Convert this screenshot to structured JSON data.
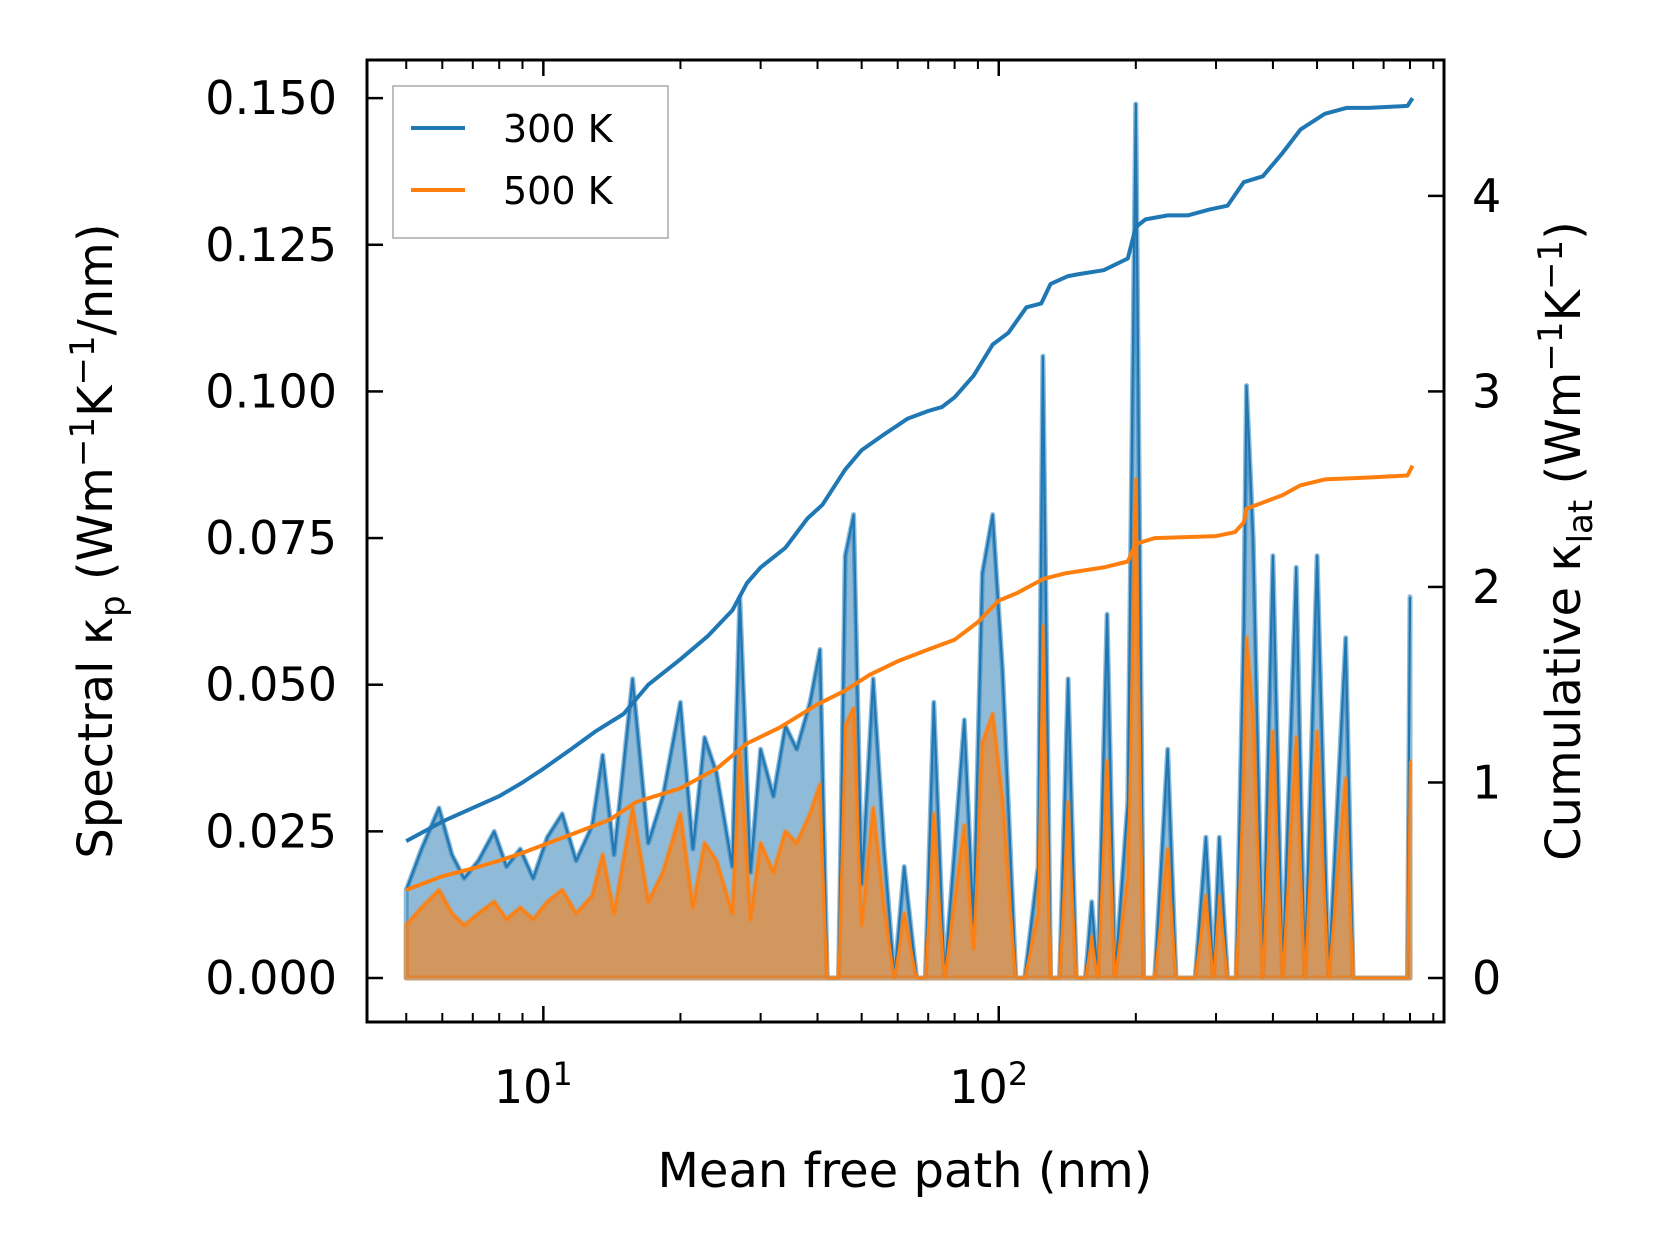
{
  "chart_data": {
    "type": "line",
    "xlabel": "Mean free path (nm)",
    "x_scale": "log",
    "xlim": [
      4.1,
      950
    ],
    "x_ticks": [
      {
        "value": 10,
        "base": "10",
        "exp": "1"
      },
      {
        "value": 100,
        "base": "10",
        "exp": "2"
      }
    ],
    "ylabel_left": {
      "prefix": "Spectral κ",
      "sub": "p",
      "units": " (Wm",
      "e1": "−1",
      "mid": "K",
      "e2": "−1",
      "tail": "/nm)"
    },
    "ylim_left": [
      -0.0075,
      0.1565
    ],
    "yticks_left": [
      "0.000",
      "0.025",
      "0.050",
      "0.075",
      "0.100",
      "0.125",
      "0.150"
    ],
    "ylabel_right": {
      "prefix": "Cumulative κ",
      "sub": "lat",
      "units": " (Wm",
      "e1": "−1",
      "mid": "K",
      "e2": "−1",
      "tail": ")"
    },
    "ylim_right": [
      -0.225,
      4.695
    ],
    "yticks_right": [
      "0",
      "1",
      "2",
      "3",
      "4"
    ],
    "legend": {
      "location": "upper-left",
      "entries": [
        "300 K",
        "500 K"
      ]
    },
    "colors": {
      "300 K": "#1f77b4",
      "500 K": "#ff7f0e",
      "fill_300": "#1f77b4",
      "fill_500": "#ff7f0e"
    },
    "spectral_series": [
      {
        "name": "300 K",
        "axis": "left",
        "points": [
          [
            5,
            0.015
          ],
          [
            5.4,
            0.022
          ],
          [
            5.9,
            0.029
          ],
          [
            6.3,
            0.021
          ],
          [
            6.7,
            0.017
          ],
          [
            7.2,
            0.02
          ],
          [
            7.8,
            0.025
          ],
          [
            8.3,
            0.019
          ],
          [
            8.9,
            0.022
          ],
          [
            9.5,
            0.017
          ],
          [
            10.2,
            0.024
          ],
          [
            11,
            0.028
          ],
          [
            11.8,
            0.02
          ],
          [
            12.8,
            0.026
          ],
          [
            13.5,
            0.038
          ],
          [
            14.3,
            0.021
          ],
          [
            15.7,
            0.051
          ],
          [
            17,
            0.023
          ],
          [
            18.3,
            0.031
          ],
          [
            20,
            0.047
          ],
          [
            21.3,
            0.022
          ],
          [
            22.6,
            0.041
          ],
          [
            24,
            0.035
          ],
          [
            26,
            0.019
          ],
          [
            27,
            0.065
          ],
          [
            28.5,
            0.018
          ],
          [
            30,
            0.039
          ],
          [
            32,
            0.031
          ],
          [
            34,
            0.043
          ],
          [
            36,
            0.039
          ],
          [
            38.5,
            0.047
          ],
          [
            40.5,
            0.056
          ],
          [
            42,
            0.0
          ],
          [
            44.5,
            0.0
          ],
          [
            46,
            0.072
          ],
          [
            48,
            0.079
          ],
          [
            50,
            0.016
          ],
          [
            53,
            0.051
          ],
          [
            56,
            0.022
          ],
          [
            59,
            0.0
          ],
          [
            62,
            0.019
          ],
          [
            66,
            0.0
          ],
          [
            69,
            0.0
          ],
          [
            72,
            0.047
          ],
          [
            76,
            0.0
          ],
          [
            80,
            0.022
          ],
          [
            84,
            0.044
          ],
          [
            88,
            0.009
          ],
          [
            92,
            0.069
          ],
          [
            97,
            0.079
          ],
          [
            102,
            0.052
          ],
          [
            109,
            0.0
          ],
          [
            114,
            0.0
          ],
          [
            122,
            0.019
          ],
          [
            125,
            0.106
          ],
          [
            130,
            0.0
          ],
          [
            136,
            0.0
          ],
          [
            142,
            0.051
          ],
          [
            148,
            0.0
          ],
          [
            155,
            0.0
          ],
          [
            160,
            0.013
          ],
          [
            165,
            0.0
          ],
          [
            173,
            0.062
          ],
          [
            180,
            0.0
          ],
          [
            192,
            0.03
          ],
          [
            200,
            0.149
          ],
          [
            208,
            0.0
          ],
          [
            220,
            0.0
          ],
          [
            235,
            0.039
          ],
          [
            245,
            0.0
          ],
          [
            270,
            0.0
          ],
          [
            285,
            0.024
          ],
          [
            296,
            0.0
          ],
          [
            305,
            0.024
          ],
          [
            318,
            0.0
          ],
          [
            332,
            0.0
          ],
          [
            345,
            0.06
          ],
          [
            350,
            0.101
          ],
          [
            362,
            0.075
          ],
          [
            380,
            0.0
          ],
          [
            400,
            0.072
          ],
          [
            420,
            0.0
          ],
          [
            450,
            0.07
          ],
          [
            470,
            0.0
          ],
          [
            500,
            0.072
          ],
          [
            530,
            0.0
          ],
          [
            578,
            0.058
          ],
          [
            600,
            0.0
          ],
          [
            650,
            0.0
          ],
          [
            790,
            0.0
          ],
          [
            800,
            0.065
          ]
        ]
      },
      {
        "name": "500 K",
        "axis": "left",
        "points": [
          [
            5,
            0.009
          ],
          [
            5.4,
            0.012
          ],
          [
            5.9,
            0.015
          ],
          [
            6.3,
            0.011
          ],
          [
            6.7,
            0.009
          ],
          [
            7.2,
            0.011
          ],
          [
            7.8,
            0.013
          ],
          [
            8.3,
            0.01
          ],
          [
            8.9,
            0.012
          ],
          [
            9.5,
            0.01
          ],
          [
            10.2,
            0.013
          ],
          [
            11,
            0.015
          ],
          [
            11.8,
            0.011
          ],
          [
            12.8,
            0.014
          ],
          [
            13.5,
            0.021
          ],
          [
            14.3,
            0.011
          ],
          [
            15.7,
            0.029
          ],
          [
            17,
            0.013
          ],
          [
            18.3,
            0.018
          ],
          [
            20,
            0.028
          ],
          [
            21.3,
            0.012
          ],
          [
            22.6,
            0.023
          ],
          [
            24,
            0.02
          ],
          [
            26,
            0.011
          ],
          [
            27,
            0.039
          ],
          [
            28.5,
            0.01
          ],
          [
            30,
            0.023
          ],
          [
            32,
            0.018
          ],
          [
            34,
            0.025
          ],
          [
            36,
            0.023
          ],
          [
            38.5,
            0.028
          ],
          [
            40.5,
            0.033
          ],
          [
            42,
            0.0
          ],
          [
            44.5,
            0.0
          ],
          [
            46,
            0.043
          ],
          [
            48,
            0.046
          ],
          [
            50,
            0.009
          ],
          [
            53,
            0.029
          ],
          [
            56,
            0.012
          ],
          [
            59,
            0.0
          ],
          [
            62,
            0.011
          ],
          [
            66,
            0.0
          ],
          [
            69,
            0.0
          ],
          [
            72,
            0.028
          ],
          [
            76,
            0.0
          ],
          [
            80,
            0.013
          ],
          [
            84,
            0.026
          ],
          [
            88,
            0.005
          ],
          [
            92,
            0.04
          ],
          [
            97,
            0.045
          ],
          [
            102,
            0.03
          ],
          [
            109,
            0.0
          ],
          [
            114,
            0.0
          ],
          [
            122,
            0.011
          ],
          [
            125,
            0.06
          ],
          [
            130,
            0.0
          ],
          [
            136,
            0.0
          ],
          [
            142,
            0.03
          ],
          [
            148,
            0.0
          ],
          [
            155,
            0.0
          ],
          [
            160,
            0.007
          ],
          [
            165,
            0.0
          ],
          [
            173,
            0.037
          ],
          [
            180,
            0.0
          ],
          [
            192,
            0.017
          ],
          [
            200,
            0.085
          ],
          [
            208,
            0.0
          ],
          [
            220,
            0.0
          ],
          [
            235,
            0.022
          ],
          [
            245,
            0.0
          ],
          [
            270,
            0.0
          ],
          [
            285,
            0.014
          ],
          [
            296,
            0.0
          ],
          [
            305,
            0.014
          ],
          [
            318,
            0.0
          ],
          [
            332,
            0.0
          ],
          [
            345,
            0.035
          ],
          [
            350,
            0.058
          ],
          [
            362,
            0.044
          ],
          [
            380,
            0.0
          ],
          [
            400,
            0.042
          ],
          [
            420,
            0.0
          ],
          [
            450,
            0.041
          ],
          [
            470,
            0.0
          ],
          [
            500,
            0.042
          ],
          [
            530,
            0.0
          ],
          [
            578,
            0.034
          ],
          [
            600,
            0.0
          ],
          [
            650,
            0.0
          ],
          [
            790,
            0.0
          ],
          [
            800,
            0.037
          ]
        ]
      }
    ],
    "cumulative_series": [
      {
        "name": "300 K",
        "axis": "right",
        "points": [
          [
            5,
            0.7
          ],
          [
            6,
            0.8
          ],
          [
            7,
            0.87
          ],
          [
            8,
            0.93
          ],
          [
            9,
            1.0
          ],
          [
            10,
            1.07
          ],
          [
            11.5,
            1.17
          ],
          [
            13,
            1.26
          ],
          [
            15,
            1.35
          ],
          [
            17,
            1.5
          ],
          [
            20,
            1.63
          ],
          [
            23,
            1.75
          ],
          [
            26,
            1.88
          ],
          [
            28,
            2.02
          ],
          [
            30,
            2.1
          ],
          [
            34,
            2.2
          ],
          [
            38,
            2.35
          ],
          [
            41,
            2.42
          ],
          [
            46,
            2.6
          ],
          [
            50,
            2.7
          ],
          [
            56,
            2.78
          ],
          [
            63,
            2.86
          ],
          [
            70,
            2.9
          ],
          [
            75,
            2.92
          ],
          [
            80,
            2.97
          ],
          [
            88,
            3.08
          ],
          [
            97,
            3.24
          ],
          [
            105,
            3.3
          ],
          [
            115,
            3.43
          ],
          [
            124,
            3.45
          ],
          [
            130,
            3.55
          ],
          [
            142,
            3.59
          ],
          [
            150,
            3.6
          ],
          [
            170,
            3.62
          ],
          [
            192,
            3.68
          ],
          [
            200,
            3.84
          ],
          [
            210,
            3.88
          ],
          [
            235,
            3.9
          ],
          [
            260,
            3.9
          ],
          [
            290,
            3.93
          ],
          [
            318,
            3.95
          ],
          [
            345,
            4.07
          ],
          [
            380,
            4.1
          ],
          [
            420,
            4.22
          ],
          [
            460,
            4.34
          ],
          [
            520,
            4.42
          ],
          [
            580,
            4.45
          ],
          [
            650,
            4.45
          ],
          [
            790,
            4.46
          ],
          [
            810,
            4.5
          ]
        ]
      },
      {
        "name": "500 K",
        "axis": "right",
        "points": [
          [
            5,
            0.45
          ],
          [
            6,
            0.52
          ],
          [
            7,
            0.56
          ],
          [
            8,
            0.6
          ],
          [
            9,
            0.64
          ],
          [
            10,
            0.68
          ],
          [
            12,
            0.75
          ],
          [
            14,
            0.81
          ],
          [
            16,
            0.9
          ],
          [
            20,
            0.97
          ],
          [
            24,
            1.07
          ],
          [
            28,
            1.2
          ],
          [
            33,
            1.28
          ],
          [
            40,
            1.4
          ],
          [
            46,
            1.47
          ],
          [
            52,
            1.55
          ],
          [
            60,
            1.62
          ],
          [
            70,
            1.68
          ],
          [
            80,
            1.73
          ],
          [
            90,
            1.82
          ],
          [
            100,
            1.93
          ],
          [
            110,
            1.97
          ],
          [
            125,
            2.04
          ],
          [
            140,
            2.07
          ],
          [
            170,
            2.1
          ],
          [
            192,
            2.13
          ],
          [
            200,
            2.22
          ],
          [
            220,
            2.25
          ],
          [
            300,
            2.26
          ],
          [
            330,
            2.28
          ],
          [
            345,
            2.33
          ],
          [
            350,
            2.4
          ],
          [
            420,
            2.47
          ],
          [
            460,
            2.52
          ],
          [
            520,
            2.55
          ],
          [
            650,
            2.56
          ],
          [
            790,
            2.57
          ],
          [
            810,
            2.62
          ]
        ]
      }
    ]
  }
}
